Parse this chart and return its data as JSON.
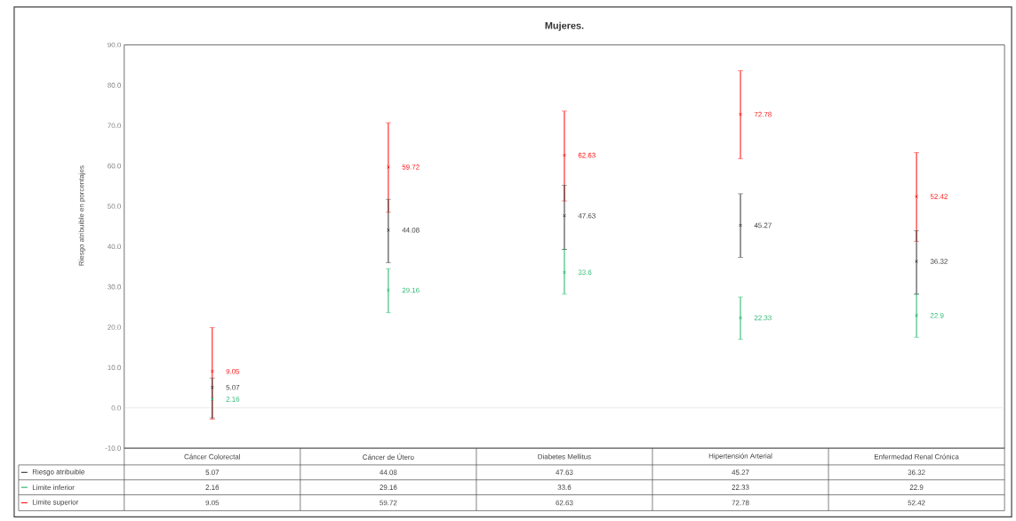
{
  "chart_data": {
    "type": "scatter",
    "title": "Mujeres.",
    "ylabel": "Riesgo atribuible en porcentajes",
    "categories": [
      "Cáncer Colorectal",
      "Cáncer de Útero",
      "Diabetes Mellitus",
      "Hipertensión Arterial",
      "Enfermedad Renal Crónica"
    ],
    "series": [
      {
        "name": "Riesgo atribuible",
        "color": "#404040",
        "values": [
          5.07,
          44.08,
          47.63,
          45.27,
          36.32
        ],
        "value_labels": [
          "5.07",
          "44.08",
          "47.63",
          "45.27",
          "36.32"
        ],
        "errors": [
          [
            -2.5,
            7.4
          ],
          [
            36.0,
            51.7
          ],
          [
            39.3,
            55.2
          ],
          [
            37.3,
            53.1
          ],
          [
            28.2,
            43.9
          ]
        ]
      },
      {
        "name": "Limite inferior",
        "color": "#2eb872",
        "values": [
          2.16,
          29.16,
          33.6,
          22.33,
          22.9
        ],
        "value_labels": [
          "2.16",
          "29.16",
          "33.6",
          "22.33",
          "22.9"
        ],
        "errors": [
          null,
          [
            23.6,
            34.5
          ],
          [
            28.2,
            39.3
          ],
          [
            17.0,
            27.5
          ],
          [
            17.5,
            28.2
          ]
        ]
      },
      {
        "name": "Limite superior",
        "color": "#ff1a1a",
        "values": [
          9.05,
          59.72,
          62.63,
          72.78,
          52.42
        ],
        "value_labels": [
          "9.05",
          "59.72",
          "62.63",
          "72.78",
          "52.42"
        ],
        "errors": [
          [
            -2.8,
            19.9
          ],
          [
            48.5,
            70.7
          ],
          [
            51.3,
            73.6
          ],
          [
            61.8,
            83.6
          ],
          [
            41.3,
            63.3
          ]
        ]
      }
    ],
    "ylim": [
      -10,
      90
    ],
    "yticks": [
      {
        "value": -10,
        "label": "-10.0"
      },
      {
        "value": 0,
        "label": "0.0"
      },
      {
        "value": 10,
        "label": "10.0"
      },
      {
        "value": 20,
        "label": "20.0"
      },
      {
        "value": 30,
        "label": "30.0"
      },
      {
        "value": 40,
        "label": "40.0"
      },
      {
        "value": 50,
        "label": "50.0"
      },
      {
        "value": 60,
        "label": "60.0"
      },
      {
        "value": 70,
        "label": "70.0"
      },
      {
        "value": 80,
        "label": "80.0"
      },
      {
        "value": 90,
        "label": "90.0"
      }
    ],
    "ref_lines": [
      {
        "axis": "y",
        "value": 0,
        "color": "#d9d9d9"
      }
    ],
    "marker": "cross",
    "data_labels": true,
    "grid": false,
    "legend": "bottom left"
  }
}
